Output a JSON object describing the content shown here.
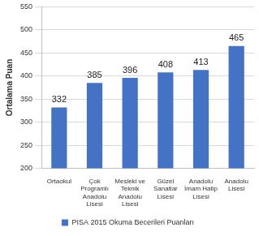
{
  "chart_data": {
    "type": "bar",
    "y_label": "Ortalama Puan",
    "categories": [
      "Ortaokul",
      "Çok Programlı Anadolu Lisesi",
      "Mesleki ve Teknik Anadolu Lisesi",
      "Güzel Sanatlar Lisesi",
      "Anadolu İmam Hatip Lisesi",
      "Anadolu Lisesi"
    ],
    "series": [
      {
        "name": "PISA 2015 Okuma Becerileri Puanları",
        "color": "#4472c4",
        "values": [
          332,
          385,
          396,
          408,
          413,
          465
        ]
      }
    ],
    "ylim": [
      200,
      550
    ],
    "yticks": [
      200,
      250,
      300,
      350,
      400,
      450,
      500,
      550
    ],
    "grid": true,
    "legend": "bottom",
    "data_labels": true
  }
}
